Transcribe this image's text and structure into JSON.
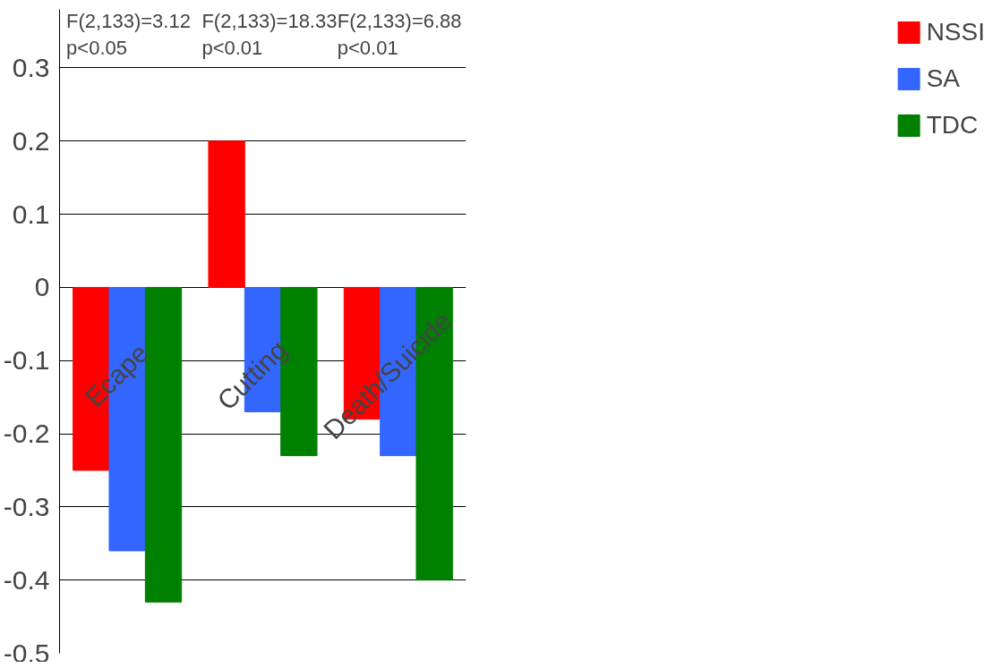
{
  "chart_data": {
    "type": "bar",
    "categories": [
      "Ecape",
      "Cutting",
      "Death/Suicide"
    ],
    "series": [
      {
        "name": "NSSI",
        "color": "#ff0000",
        "values": [
          -0.25,
          0.2,
          -0.18
        ]
      },
      {
        "name": "SA",
        "color": "#3366ff",
        "values": [
          -0.36,
          -0.17,
          -0.23
        ]
      },
      {
        "name": "TDC",
        "color": "#008000",
        "values": [
          -0.43,
          -0.23,
          -0.4
        ]
      }
    ],
    "annotations": [
      "F(2,133)=3.12 p<0.05",
      "F(2,133)=18.33 p<0.01",
      "F(2,133)=6.88 p<0.01"
    ],
    "ylim": [
      -0.5,
      0.3
    ],
    "yticks": [
      -0.5,
      -0.4,
      -0.3,
      -0.2,
      -0.1,
      0,
      0.1,
      0.2,
      0.3
    ],
    "grid": "y",
    "legend": "right"
  }
}
